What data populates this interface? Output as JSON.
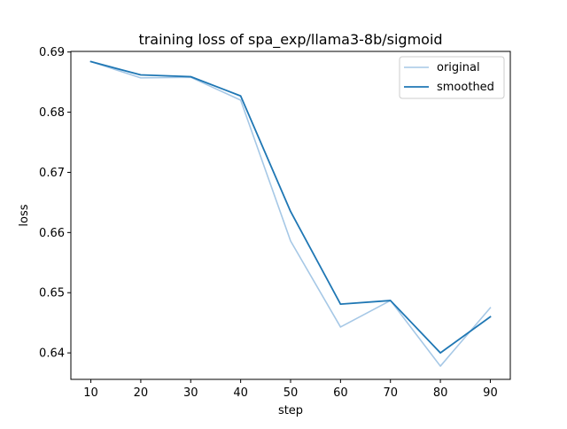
{
  "colors": {
    "original": "#a6c8e6",
    "smoothed": "#1f77b4",
    "axis": "#000000",
    "legend_border": "#cccccc"
  },
  "chart_data": {
    "type": "line",
    "title": "training loss of spa_exp/llama3-8b/sigmoid",
    "xlabel": "step",
    "ylabel": "loss",
    "x": [
      10,
      20,
      30,
      40,
      50,
      60,
      70,
      80,
      90
    ],
    "series": [
      {
        "name": "original",
        "values": [
          0.6884,
          0.6857,
          0.6858,
          0.682,
          0.6586,
          0.6443,
          0.6487,
          0.6378,
          0.6475
        ],
        "color": "#a6c8e6"
      },
      {
        "name": "smoothed",
        "values": [
          0.6884,
          0.6862,
          0.6859,
          0.6827,
          0.6635,
          0.6481,
          0.6487,
          0.64,
          0.646
        ],
        "color": "#1f77b4"
      }
    ],
    "xlim": [
      6,
      94
    ],
    "ylim": [
      0.6356,
      0.6901
    ],
    "xticks": [
      "10",
      "20",
      "30",
      "40",
      "50",
      "60",
      "70",
      "80",
      "90"
    ],
    "yticks": [
      "0.64",
      "0.65",
      "0.66",
      "0.67",
      "0.68",
      "0.69"
    ],
    "legend": "top-right",
    "grid": false
  }
}
